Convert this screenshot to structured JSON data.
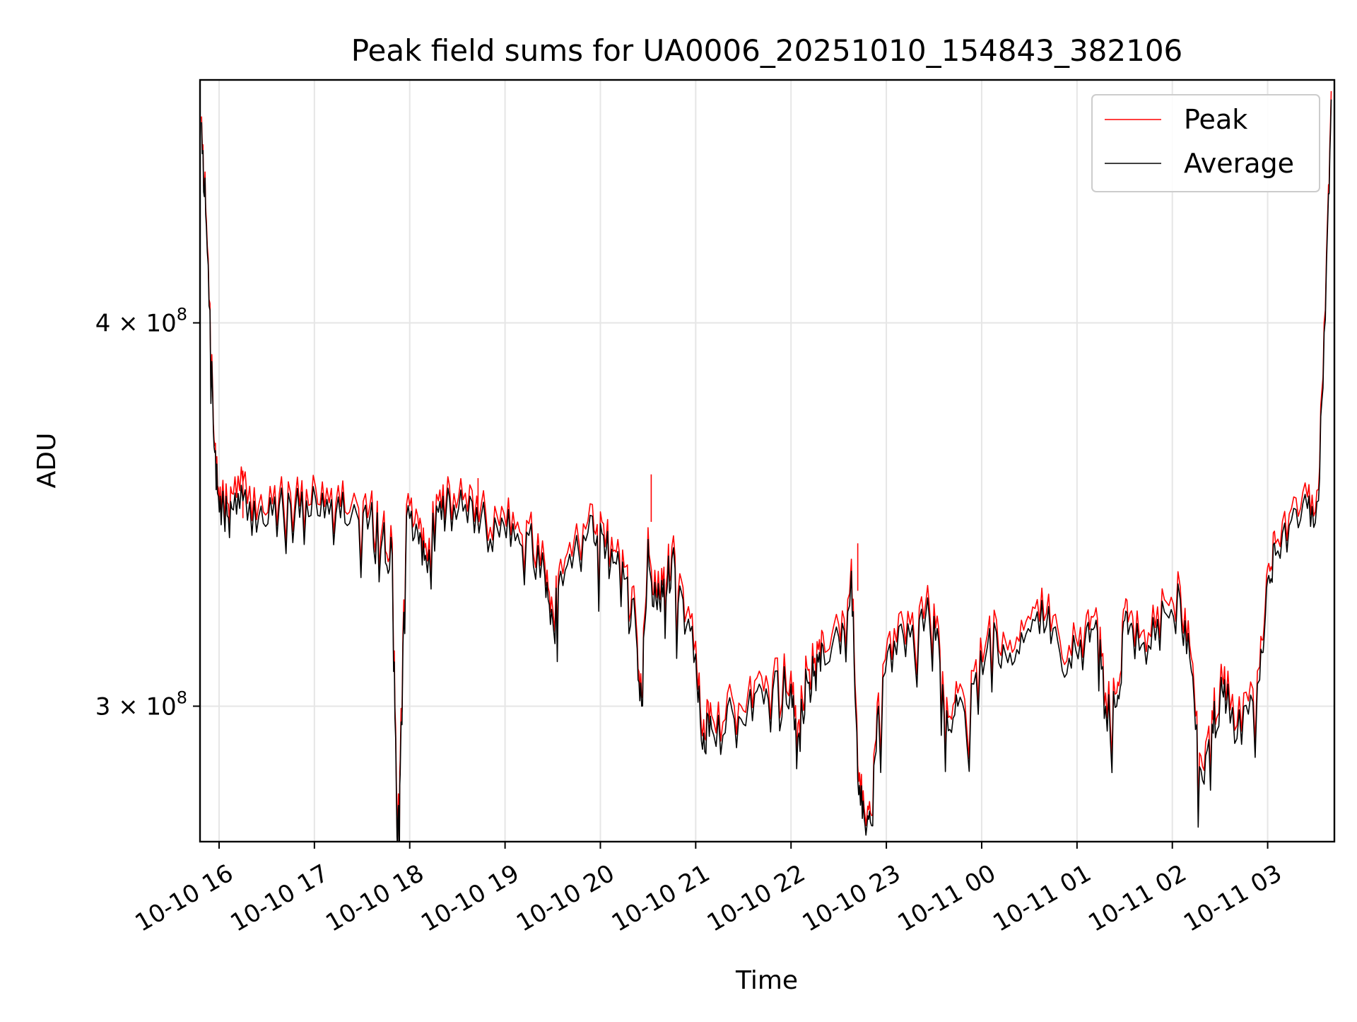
{
  "chart_data": {
    "type": "line",
    "title": "Peak field sums for UA0006_20251010_154843_382106",
    "xlabel": "Time",
    "ylabel": "ADU",
    "yscale": "log",
    "grid": true,
    "legend_placement": "top-right",
    "x_ticks": [
      "10-10 16",
      "10-10 17",
      "10-10 18",
      "10-10 19",
      "10-10 20",
      "10-10 21",
      "10-10 22",
      "10-10 23",
      "10-11 00",
      "10-11 01",
      "10-11 02",
      "10-11 03"
    ],
    "y_ticks": [
      {
        "value": 300000000,
        "mantissa": "3",
        "exponent": "8"
      },
      {
        "value": 400000000,
        "mantissa": "4",
        "exponent": "8"
      }
    ],
    "xlim": [
      "2025-10-10 15:48",
      "2025-10-11 03:42"
    ],
    "ylim": [
      271000000,
      480000000
    ],
    "series": [
      {
        "name": "Peak",
        "color": "#ff0000"
      },
      {
        "name": "Average",
        "color": "#000000"
      }
    ],
    "x": [
      "2025-10-10 15:49",
      "2025-10-10 15:52",
      "2025-10-10 15:56",
      "2025-10-10 15:59",
      "2025-10-10 16:03",
      "2025-10-10 16:08",
      "2025-10-10 16:15",
      "2025-10-10 16:25",
      "2025-10-10 16:35",
      "2025-10-10 16:45",
      "2025-10-10 16:55",
      "2025-10-10 17:05",
      "2025-10-10 17:15",
      "2025-10-10 17:25",
      "2025-10-10 17:35",
      "2025-10-10 17:43",
      "2025-10-10 17:49",
      "2025-10-10 17:52",
      "2025-10-10 17:54",
      "2025-10-10 17:58",
      "2025-10-10 18:05",
      "2025-10-10 18:10",
      "2025-10-10 18:18",
      "2025-10-10 18:25",
      "2025-10-10 18:35",
      "2025-10-10 18:45",
      "2025-10-10 18:55",
      "2025-10-10 19:05",
      "2025-10-10 19:15",
      "2025-10-10 19:25",
      "2025-10-10 19:30",
      "2025-10-10 19:35",
      "2025-10-10 19:45",
      "2025-10-10 19:55",
      "2025-10-10 20:02",
      "2025-10-10 20:08",
      "2025-10-10 20:15",
      "2025-10-10 20:22",
      "2025-10-10 20:26",
      "2025-10-10 20:30",
      "2025-10-10 20:35",
      "2025-10-10 20:40",
      "2025-10-10 20:45",
      "2025-10-10 20:52",
      "2025-10-10 21:00",
      "2025-10-10 21:05",
      "2025-10-10 21:10",
      "2025-10-10 21:20",
      "2025-10-10 21:30",
      "2025-10-10 21:40",
      "2025-10-10 21:50",
      "2025-10-10 22:00",
      "2025-10-10 22:05",
      "2025-10-10 22:10",
      "2025-10-10 22:15",
      "2025-10-10 22:20",
      "2025-10-10 22:30",
      "2025-10-10 22:38",
      "2025-10-10 22:42",
      "2025-10-10 22:46",
      "2025-10-10 22:50",
      "2025-10-10 22:55",
      "2025-10-10 23:05",
      "2025-10-10 23:15",
      "2025-10-10 23:25",
      "2025-10-10 23:32",
      "2025-10-10 23:38",
      "2025-10-10 23:45",
      "2025-10-10 23:55",
      "2025-10-11 00:05",
      "2025-10-11 00:15",
      "2025-10-11 00:25",
      "2025-10-11 00:35",
      "2025-10-11 00:45",
      "2025-10-11 00:55",
      "2025-10-11 01:05",
      "2025-10-11 01:12",
      "2025-10-11 01:18",
      "2025-10-11 01:25",
      "2025-10-11 01:30",
      "2025-10-11 01:35",
      "2025-10-11 01:45",
      "2025-10-11 01:55",
      "2025-10-11 02:05",
      "2025-10-11 02:12",
      "2025-10-11 02:18",
      "2025-10-11 02:25",
      "2025-10-11 02:30",
      "2025-10-11 02:35",
      "2025-10-11 02:45",
      "2025-10-11 02:55",
      "2025-10-11 03:00",
      "2025-10-11 03:05",
      "2025-10-11 03:15",
      "2025-10-11 03:25",
      "2025-10-11 03:32",
      "2025-10-11 03:37",
      "2025-10-11 03:40"
    ],
    "average_adu": [
      465000000,
      430000000,
      378000000,
      352000000,
      347000000,
      348000000,
      350000000,
      346000000,
      351000000,
      349000000,
      350000000,
      352000000,
      351000000,
      349000000,
      346000000,
      341000000,
      336000000,
      272000000,
      285000000,
      346000000,
      342000000,
      336000000,
      347000000,
      351000000,
      349000000,
      346000000,
      343000000,
      344000000,
      341000000,
      331000000,
      320000000,
      332000000,
      341000000,
      346000000,
      341000000,
      334000000,
      330000000,
      320000000,
      300000000,
      340000000,
      325000000,
      330000000,
      335000000,
      325000000,
      312000000,
      294000000,
      295000000,
      300000000,
      296000000,
      305000000,
      308000000,
      305000000,
      294000000,
      306000000,
      308000000,
      314000000,
      316000000,
      332000000,
      284000000,
      276000000,
      275000000,
      300000000,
      315000000,
      316000000,
      322000000,
      318000000,
      299000000,
      300000000,
      305000000,
      318000000,
      312000000,
      317000000,
      322000000,
      318000000,
      311000000,
      315000000,
      320000000,
      300000000,
      300000000,
      320000000,
      318000000,
      314000000,
      322000000,
      325000000,
      308000000,
      286000000,
      296000000,
      302000000,
      305000000,
      300000000,
      306000000,
      330000000,
      336000000,
      345000000,
      348000000,
      350000000,
      418000000,
      473000000
    ],
    "peak_adu": [
      467000000,
      432000000,
      380000000,
      354000000,
      350000000,
      352000000,
      355000000,
      349000000,
      354000000,
      352000000,
      353000000,
      355000000,
      354000000,
      352000000,
      349000000,
      344000000,
      339000000,
      274000000,
      288000000,
      349000000,
      346000000,
      339000000,
      350000000,
      354000000,
      352000000,
      349000000,
      346000000,
      347000000,
      344000000,
      334000000,
      323000000,
      335000000,
      344000000,
      349000000,
      344000000,
      337000000,
      333000000,
      323000000,
      302000000,
      343000000,
      328000000,
      333000000,
      338000000,
      328000000,
      315000000,
      297000000,
      298000000,
      303000000,
      299000000,
      308000000,
      311000000,
      308000000,
      297000000,
      309000000,
      311000000,
      317000000,
      319000000,
      335000000,
      287000000,
      278000000,
      277000000,
      303000000,
      318000000,
      319000000,
      325000000,
      321000000,
      302000000,
      303000000,
      308000000,
      321000000,
      315000000,
      320000000,
      325000000,
      321000000,
      314000000,
      318000000,
      323000000,
      303000000,
      303000000,
      323000000,
      321000000,
      317000000,
      325000000,
      328000000,
      311000000,
      289000000,
      299000000,
      305000000,
      308000000,
      303000000,
      309000000,
      333000000,
      339000000,
      348000000,
      351000000,
      353000000,
      421000000,
      476000000
    ],
    "peak_spikes": [
      {
        "x": "2025-10-10 16:15",
        "y": 358000000
      },
      {
        "x": "2025-10-10 18:43",
        "y": 356000000
      },
      {
        "x": "2025-10-10 20:32",
        "y": 357000000
      },
      {
        "x": "2025-10-10 22:42",
        "y": 339000000
      }
    ]
  }
}
